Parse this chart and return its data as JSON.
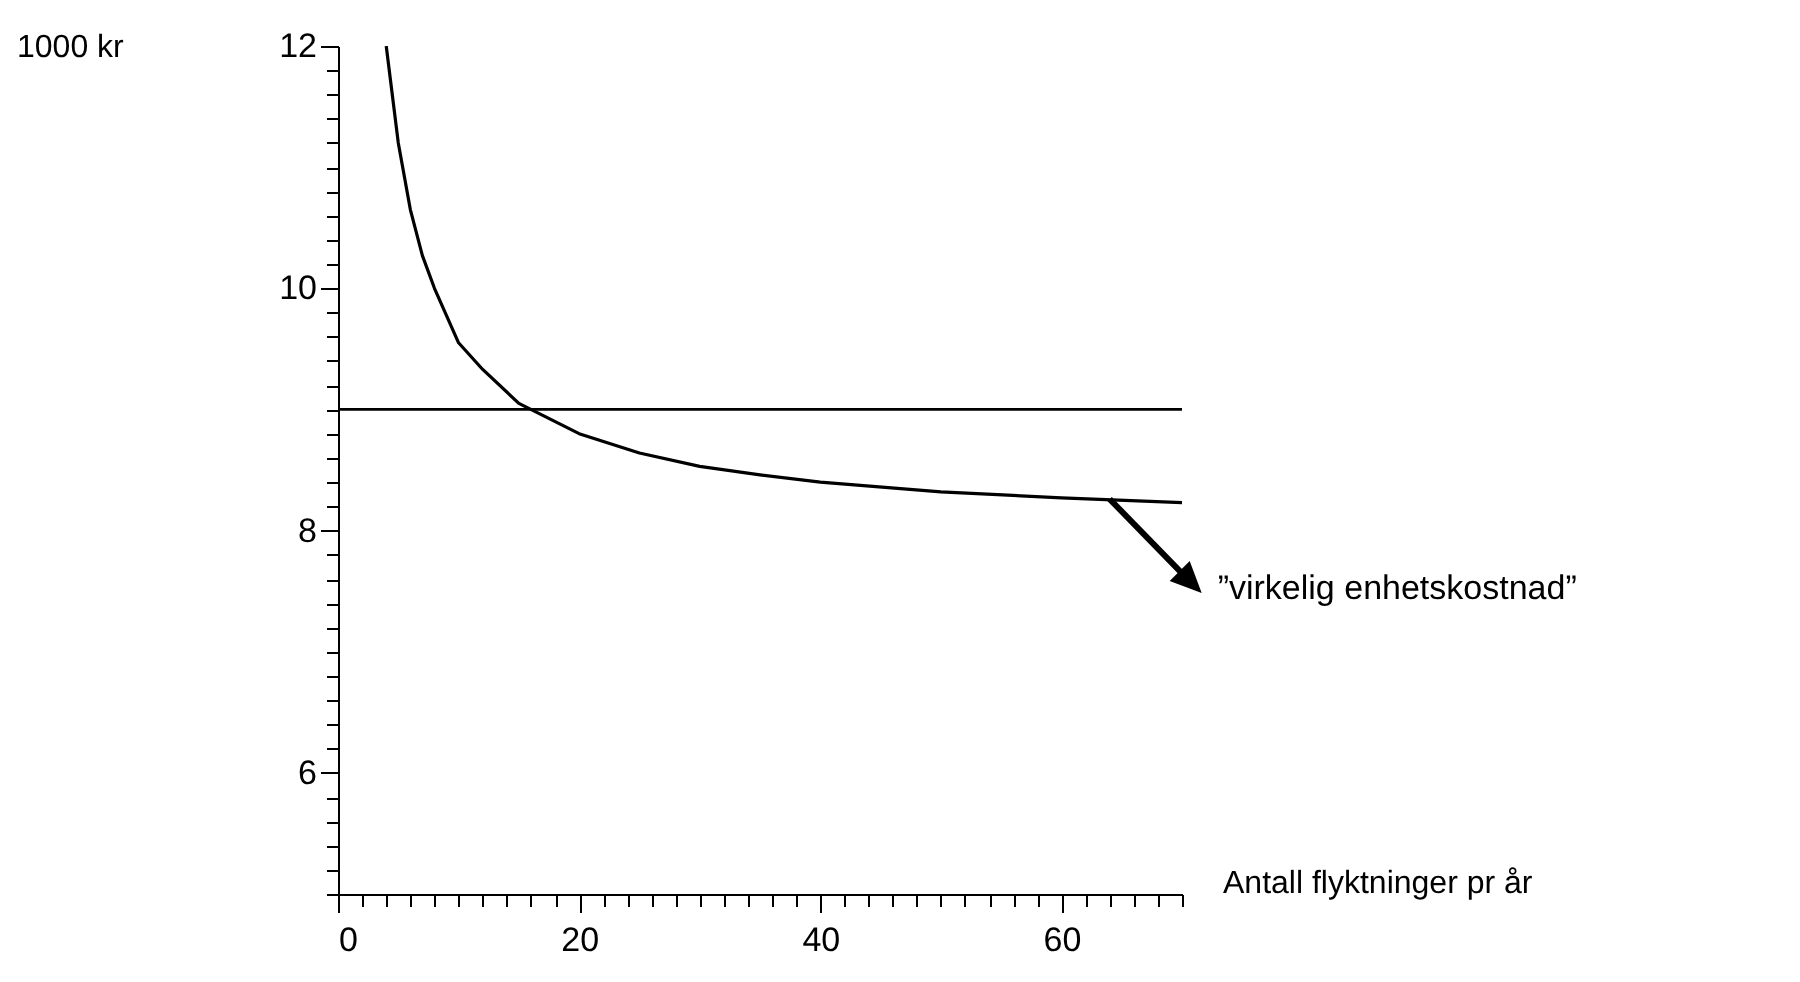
{
  "chart_data": {
    "type": "line",
    "xlabel": "Antall flyktninger pr år",
    "ylabel": "1000 kr",
    "annotations": [
      {
        "text": "”virkelig enhetskostnad”",
        "x": 64,
        "y": 8.26
      }
    ],
    "xlim": [
      0,
      70
    ],
    "ylim": [
      5,
      12
    ],
    "xticks": [
      0,
      {
        "value": 2,
        "label": null
      },
      {
        "value": 4,
        "label": null
      },
      {
        "value": 6,
        "label": null
      },
      {
        "value": 8,
        "label": null
      },
      {
        "value": 10,
        "label": null
      },
      {
        "value": 12,
        "label": null
      },
      {
        "value": 14,
        "label": null
      },
      {
        "value": 16,
        "label": null
      },
      {
        "value": 18,
        "label": null
      },
      20,
      {
        "value": 22,
        "label": null
      },
      {
        "value": 24,
        "label": null
      },
      {
        "value": 26,
        "label": null
      },
      {
        "value": 28,
        "label": null
      },
      {
        "value": 30,
        "label": null
      },
      {
        "value": 32,
        "label": null
      },
      {
        "value": 34,
        "label": null
      },
      {
        "value": 36,
        "label": null
      },
      {
        "value": 38,
        "label": null
      },
      40,
      {
        "value": 42,
        "label": null
      },
      {
        "value": 44,
        "label": null
      },
      {
        "value": 46,
        "label": null
      },
      {
        "value": 48,
        "label": null
      },
      {
        "value": 50,
        "label": null
      },
      {
        "value": 52,
        "label": null
      },
      {
        "value": 54,
        "label": null
      },
      {
        "value": 56,
        "label": null
      },
      {
        "value": 58,
        "label": null
      },
      60,
      {
        "value": 62,
        "label": null
      },
      {
        "value": 64,
        "label": null
      },
      {
        "value": 66,
        "label": null
      },
      {
        "value": 68,
        "label": null
      },
      {
        "value": 70,
        "label": null
      }
    ],
    "yticks": [
      {
        "value": 5,
        "label": null
      },
      {
        "value": 5.2,
        "label": null
      },
      {
        "value": 5.4,
        "label": null
      },
      {
        "value": 5.6,
        "label": null
      },
      {
        "value": 5.8,
        "label": null
      },
      6,
      {
        "value": 6.2,
        "label": null
      },
      {
        "value": 6.4,
        "label": null
      },
      {
        "value": 6.6,
        "label": null
      },
      {
        "value": 6.8,
        "label": null
      },
      {
        "value": 7,
        "label": null
      },
      {
        "value": 7.2,
        "label": null
      },
      {
        "value": 7.4,
        "label": null
      },
      {
        "value": 7.6,
        "label": null
      },
      {
        "value": 7.8,
        "label": null
      },
      8,
      {
        "value": 8.2,
        "label": null
      },
      {
        "value": 8.4,
        "label": null
      },
      {
        "value": 8.6,
        "label": null
      },
      {
        "value": 8.8,
        "label": null
      },
      {
        "value": 9,
        "label": null
      },
      {
        "value": 9.2,
        "label": null
      },
      {
        "value": 9.4,
        "label": null
      },
      {
        "value": 9.6,
        "label": null
      },
      {
        "value": 9.8,
        "label": null
      },
      10,
      {
        "value": 10.2,
        "label": null
      },
      {
        "value": 10.4,
        "label": null
      },
      {
        "value": 10.6,
        "label": null
      },
      {
        "value": 10.8,
        "label": null
      },
      {
        "value": 11,
        "label": null
      },
      {
        "value": 11.2,
        "label": null
      },
      {
        "value": 11.4,
        "label": null
      },
      {
        "value": 11.6,
        "label": null
      },
      {
        "value": 11.8,
        "label": null
      },
      12
    ],
    "x": [
      4,
      5,
      6,
      7,
      8,
      10,
      12,
      15,
      20,
      25,
      30,
      35,
      40,
      50,
      60,
      70
    ],
    "series": [
      {
        "color": "#000000",
        "values": [
          12,
          11.2,
          10.65,
          10.27,
          10,
          9.55,
          9.33,
          9.05,
          8.8,
          8.64,
          8.53,
          8.46,
          8.4,
          8.32,
          8.27,
          8.23
        ]
      }
    ],
    "ref_lines": [
      {
        "axis": "y",
        "value": 9,
        "color": "#000000"
      }
    ],
    "grid": false,
    "marker": "none",
    "line_style": "solid"
  }
}
